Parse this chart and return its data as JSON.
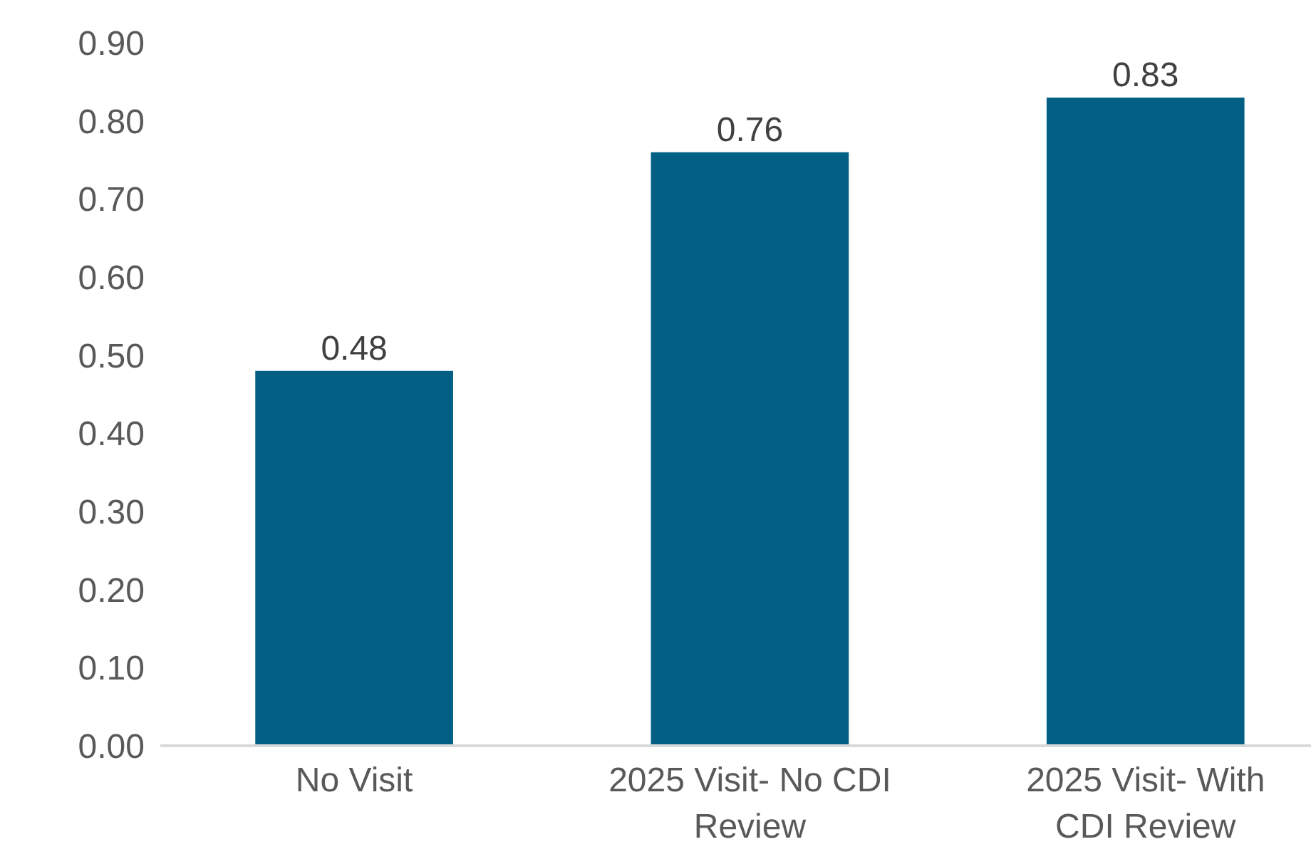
{
  "chart_data": {
    "type": "bar",
    "categories": [
      "No Visit",
      "2025 Visit- No CDI Review",
      "2025 Visit- With CDI Review"
    ],
    "values": [
      0.48,
      0.76,
      0.83
    ],
    "color": "#005f83",
    "data_labels": true,
    "grid": false,
    "ylim": [
      0,
      0.9
    ],
    "yticks": [
      {
        "value": 0,
        "label": "0.00"
      },
      {
        "value": 0.1,
        "label": "0.10"
      },
      {
        "value": 0.2,
        "label": "0.20"
      },
      {
        "value": 0.3,
        "label": "0.30"
      },
      {
        "value": 0.4,
        "label": "0.40"
      },
      {
        "value": 0.5,
        "label": "0.50"
      },
      {
        "value": 0.6,
        "label": "0.60"
      },
      {
        "value": 0.7,
        "label": "0.70"
      },
      {
        "value": 0.8,
        "label": "0.80"
      },
      {
        "value": 0.9,
        "label": "0.90"
      }
    ]
  }
}
